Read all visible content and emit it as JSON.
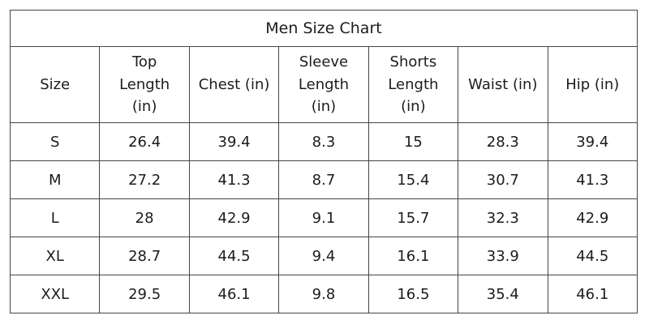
{
  "colors": {
    "background": "#ffffff",
    "border": "#454545",
    "text": "#1c1c1c"
  },
  "chart_data": {
    "type": "table",
    "title": "Men Size Chart",
    "columns": [
      "Size",
      "Top Length (in)",
      "Chest (in)",
      "Sleeve Length (in)",
      "Shorts Length (in)",
      "Waist (in)",
      "Hip (in)"
    ],
    "rows": [
      [
        "S",
        26.4,
        39.4,
        8.3,
        15,
        28.3,
        39.4
      ],
      [
        "M",
        27.2,
        41.3,
        8.7,
        15.4,
        30.7,
        41.3
      ],
      [
        "L",
        28,
        42.9,
        9.1,
        15.7,
        32.3,
        42.9
      ],
      [
        "XL",
        28.7,
        44.5,
        9.4,
        16.1,
        33.9,
        44.5
      ],
      [
        "XXL",
        29.5,
        46.1,
        9.8,
        16.5,
        35.4,
        46.1
      ]
    ]
  },
  "table": {
    "title": "Men Size Chart",
    "header_display": [
      "Size",
      "Top\nLength\n(in)",
      "Chest (in)",
      "Sleeve\nLength\n(in)",
      "Shorts\nLength\n(in)",
      "Waist (in)",
      "Hip (in)"
    ]
  }
}
